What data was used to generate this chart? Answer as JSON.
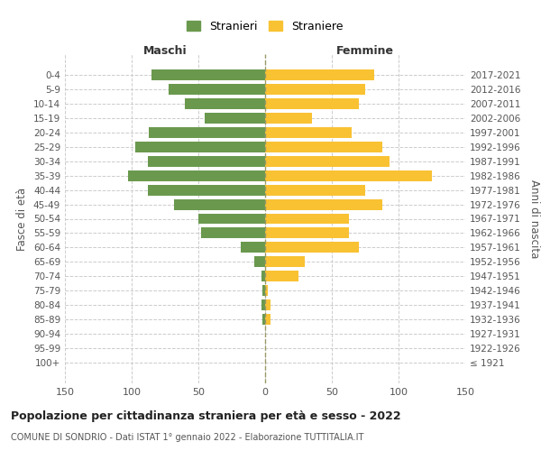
{
  "age_groups": [
    "100+",
    "95-99",
    "90-94",
    "85-89",
    "80-84",
    "75-79",
    "70-74",
    "65-69",
    "60-64",
    "55-59",
    "50-54",
    "45-49",
    "40-44",
    "35-39",
    "30-34",
    "25-29",
    "20-24",
    "15-19",
    "10-14",
    "5-9",
    "0-4"
  ],
  "birth_years": [
    "≤ 1921",
    "1922-1926",
    "1927-1931",
    "1932-1936",
    "1937-1941",
    "1942-1946",
    "1947-1951",
    "1952-1956",
    "1957-1961",
    "1962-1966",
    "1967-1971",
    "1972-1976",
    "1977-1981",
    "1982-1986",
    "1987-1991",
    "1992-1996",
    "1997-2001",
    "2002-2006",
    "2007-2011",
    "2012-2016",
    "2017-2021"
  ],
  "maschi": [
    0,
    0,
    0,
    2,
    3,
    2,
    3,
    8,
    18,
    48,
    50,
    68,
    88,
    103,
    88,
    97,
    87,
    45,
    60,
    72,
    85
  ],
  "femmine": [
    0,
    0,
    0,
    4,
    4,
    2,
    25,
    30,
    70,
    63,
    63,
    88,
    75,
    125,
    93,
    88,
    65,
    35,
    70,
    75,
    82
  ],
  "male_color": "#6a994e",
  "female_color": "#f9c233",
  "background_color": "#ffffff",
  "grid_color": "#cccccc",
  "zero_line_color": "#999966",
  "xlim": 150,
  "title": "Popolazione per cittadinanza straniera per età e sesso - 2022",
  "subtitle": "COMUNE DI SONDRIO - Dati ISTAT 1° gennaio 2022 - Elaborazione TUTTITALIA.IT",
  "ylabel_left": "Fasce di età",
  "ylabel_right": "Anni di nascita",
  "label_maschi": "Maschi",
  "label_femmine": "Femmine",
  "legend_stranieri": "Stranieri",
  "legend_straniere": "Straniere"
}
